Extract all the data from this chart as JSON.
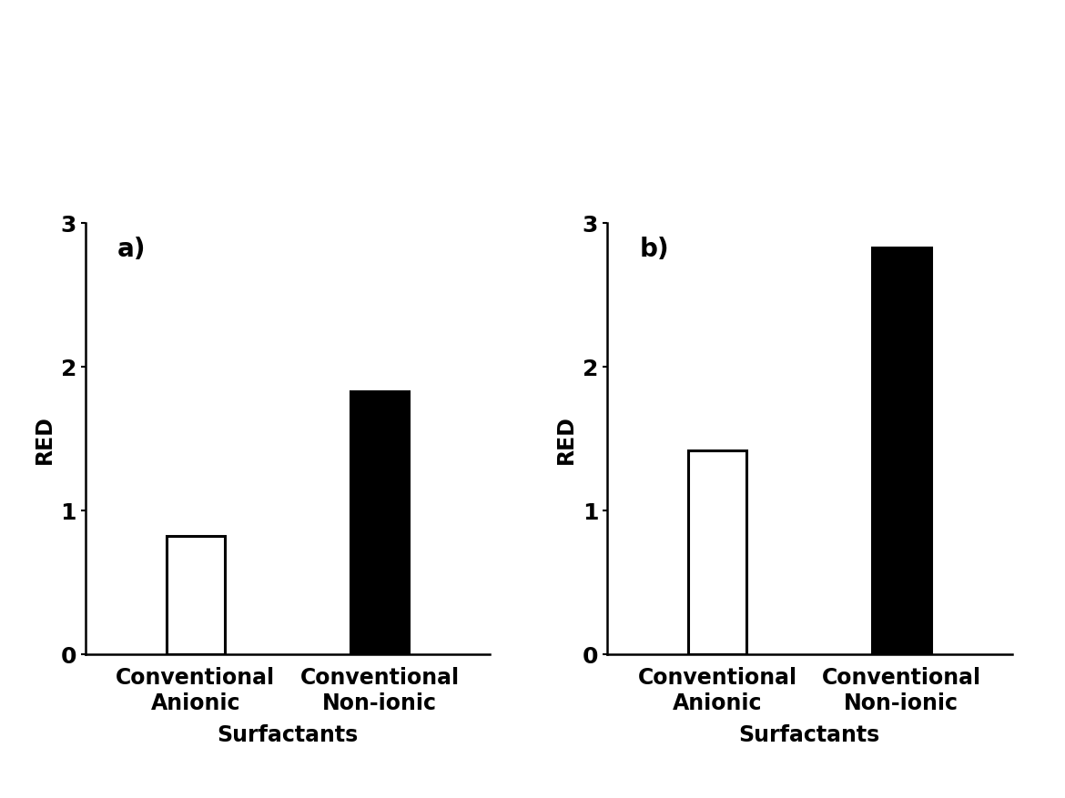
{
  "panel_a": {
    "label": "a)",
    "values": [
      0.82,
      1.83
    ],
    "colors": [
      "white",
      "black"
    ],
    "edgecolors": [
      "black",
      "black"
    ],
    "ylabel": "RED",
    "xlabel": "Surfactants",
    "categories": [
      "Conventional\nAnionic",
      "Conventional\nNon-ionic"
    ],
    "ylim": [
      0,
      3
    ],
    "yticks": [
      0,
      1,
      2,
      3
    ]
  },
  "panel_b": {
    "label": "b)",
    "values": [
      1.42,
      2.83
    ],
    "colors": [
      "white",
      "black"
    ],
    "edgecolors": [
      "black",
      "black"
    ],
    "ylabel": "RED",
    "xlabel": "Surfactants",
    "categories": [
      "Conventional\nAnionic",
      "Conventional\nNon-ionic"
    ],
    "ylim": [
      0,
      3
    ],
    "yticks": [
      0,
      1,
      2,
      3
    ]
  },
  "background_color": "#ffffff",
  "bar_width": 0.32,
  "linewidth": 2.2,
  "label_fontsize": 17,
  "tick_fontsize": 18,
  "panel_label_fontsize": 20,
  "xlabel_fontsize": 17
}
